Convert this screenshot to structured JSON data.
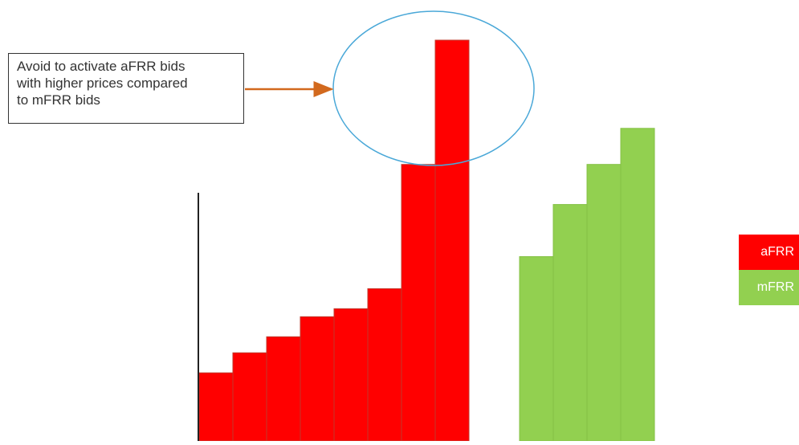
{
  "callout": {
    "lines": [
      "Avoid to activate aFRR bids",
      "with higher prices compared",
      "to mFRR bids"
    ]
  },
  "legend": [
    {
      "label": "aFRR",
      "color": "#ff0000"
    },
    {
      "label": "mFRR",
      "color": "#92d050"
    }
  ],
  "colors": {
    "afrr": "#ff0000",
    "afrr_edge": "#c0392b",
    "mfrr": "#92d050",
    "mfrr_edge": "#84c044",
    "circle": "#4aa8d8",
    "arrow": "#d2691e"
  },
  "chart_data": {
    "type": "bar",
    "title": "",
    "xlabel": "",
    "ylabel": "",
    "ylim": [
      0,
      100
    ],
    "series": [
      {
        "name": "aFRR",
        "values": [
          17,
          22,
          26,
          31,
          33,
          38,
          69,
          100
        ]
      },
      {
        "name": "mFRR",
        "values": [
          46,
          59,
          69,
          78
        ]
      }
    ]
  }
}
